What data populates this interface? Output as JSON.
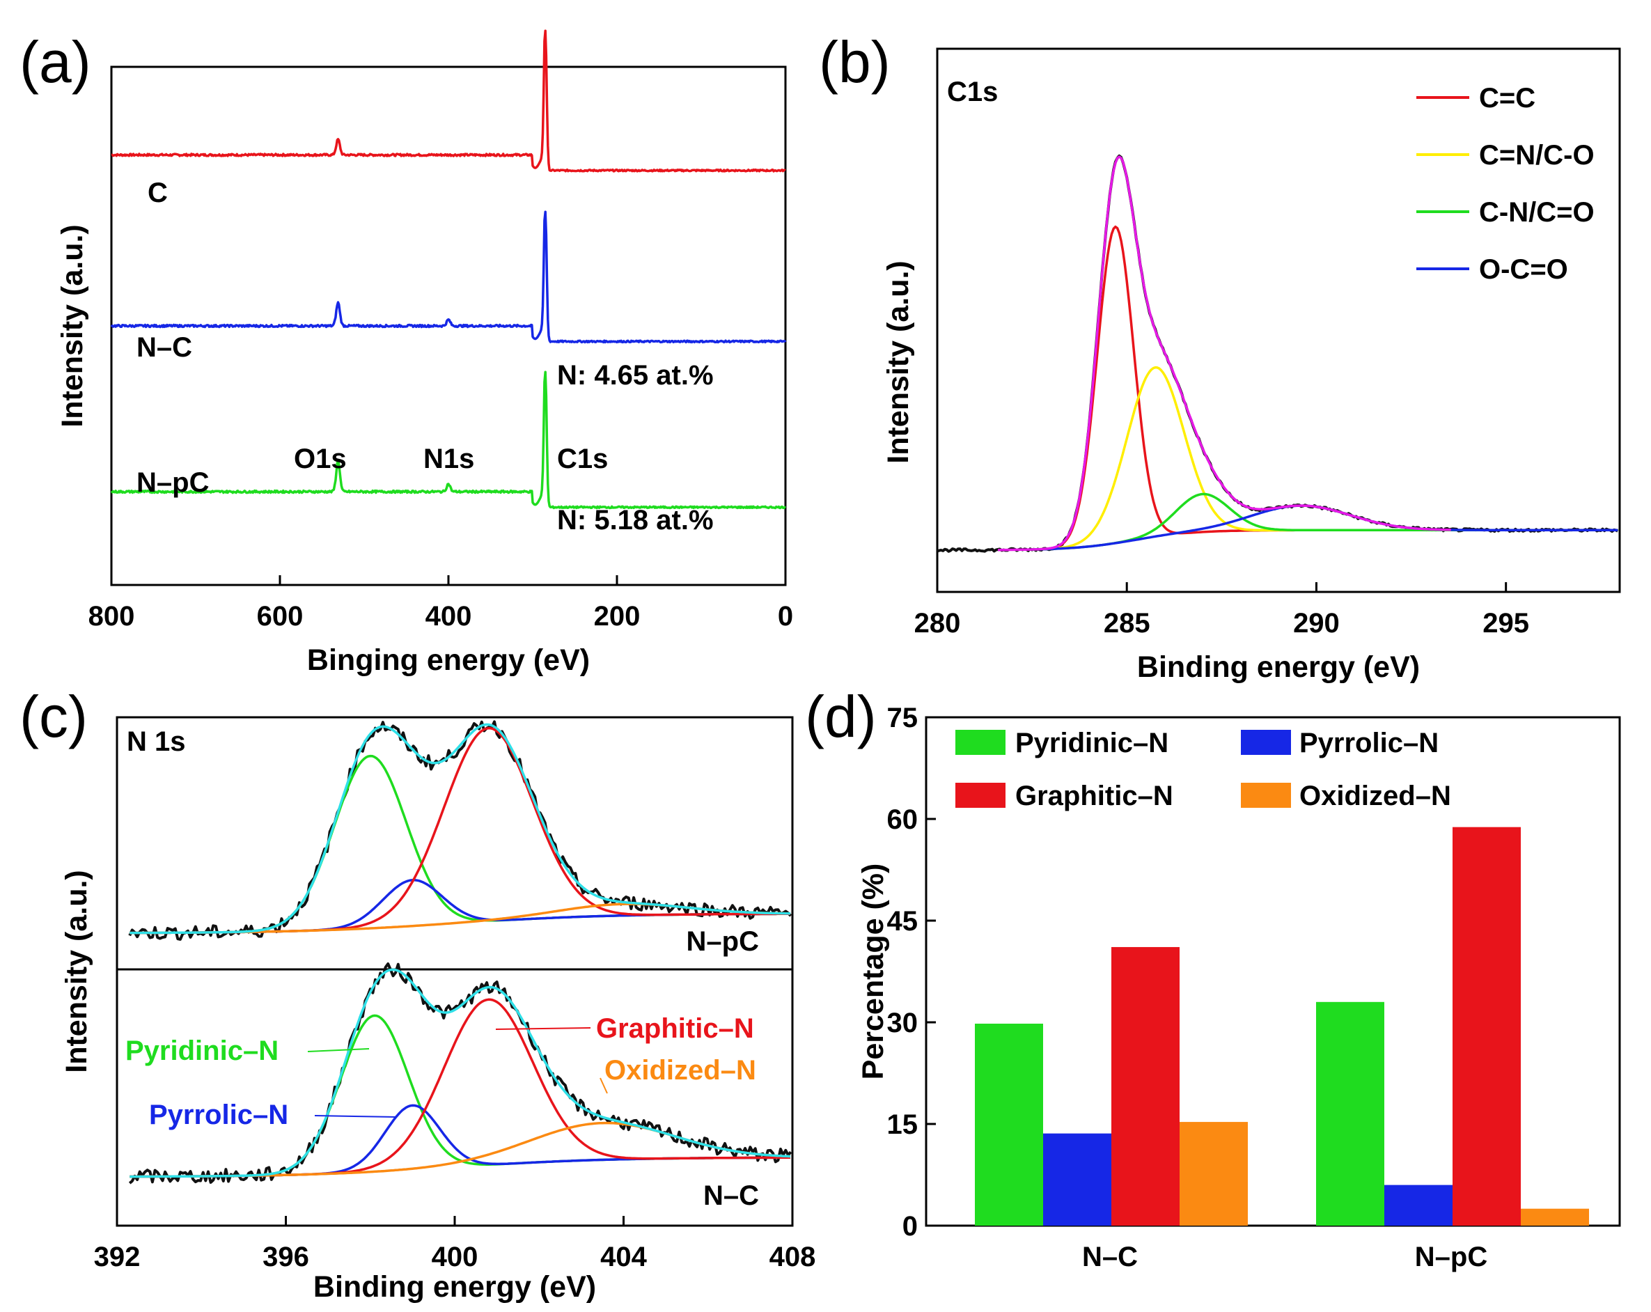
{
  "colors": {
    "red": "#e8141b",
    "blue": "#1627e6",
    "green": "#1fdc1f",
    "yellow": "#ffee00",
    "magenta": "#e619e6",
    "cyan": "#2fe0e8",
    "orange": "#fb8a12",
    "black": "#111111"
  },
  "chart_data": [
    {
      "panel": "(a)",
      "type": "line",
      "xlabel": "Binging energy (eV)",
      "ylabel": "Intensity (a.u.)",
      "xlim": [
        800,
        0
      ],
      "xticks": [
        "800",
        "600",
        "400",
        "200",
        "0"
      ],
      "series": [
        {
          "name": "C",
          "color": "red",
          "baseline": 0.83,
          "after_edge": 0.8,
          "peaks": [
            {
              "x": 531,
              "h": 0.03
            },
            {
              "x": 285,
              "h": 0.27
            }
          ]
        },
        {
          "name": "N–C",
          "color": "blue",
          "baseline": 0.5,
          "after_edge": 0.47,
          "peaks": [
            {
              "x": 531,
              "h": 0.045
            },
            {
              "x": 400,
              "h": 0.012
            },
            {
              "x": 285,
              "h": 0.25
            }
          ],
          "annotation": "N: 4.65 at.%"
        },
        {
          "name": "N–pC",
          "color": "green",
          "baseline": 0.18,
          "after_edge": 0.15,
          "peaks": [
            {
              "x": 531,
              "h": 0.06
            },
            {
              "x": 400,
              "h": 0.015
            },
            {
              "x": 285,
              "h": 0.26
            }
          ],
          "annotation": "N: 5.18 at.%"
        }
      ],
      "peak_labels": [
        {
          "text": "O1s",
          "x": 531
        },
        {
          "text": "N1s",
          "x": 400
        },
        {
          "text": "C1s",
          "x": 285
        }
      ]
    },
    {
      "panel": "(b)",
      "type": "line",
      "title": "C1s",
      "xlabel": "Binding energy (eV)",
      "ylabel": "Intensity (a.u.)",
      "xlim": [
        280,
        298
      ],
      "xticks": [
        "280",
        "285",
        "290",
        "295"
      ],
      "legend": [
        {
          "label": "C=C",
          "color": "red"
        },
        {
          "label": "C=N/C-O",
          "color": "yellow"
        },
        {
          "label": "C-N/C=O",
          "color": "green"
        },
        {
          "label": "O-C=O",
          "color": "blue"
        }
      ],
      "components": [
        {
          "name": "C=C",
          "center": 284.7,
          "height": 0.71,
          "width": 0.48
        },
        {
          "name": "C=N/C-O",
          "center": 285.75,
          "height": 0.38,
          "width": 0.75
        },
        {
          "name": "C-N/C=O",
          "center": 287.0,
          "height": 0.085,
          "width": 0.7
        },
        {
          "name": "O-C=O",
          "center": 289.6,
          "height": 0.055,
          "width": 1.3
        }
      ],
      "envelope_color": "magenta"
    },
    {
      "panel": "(c)",
      "type": "line",
      "title": "N 1s",
      "xlabel": "Binding energy (eV)",
      "ylabel": "Intensity (a.u.)",
      "xlim": [
        392,
        408
      ],
      "xticks": [
        "392",
        "396",
        "400",
        "404",
        "408"
      ],
      "subplots": [
        {
          "sample": "N–pC",
          "components": [
            {
              "name": "Pyridinic–N",
              "color": "green",
              "center": 398.0,
              "height": 0.75,
              "width": 0.85
            },
            {
              "name": "Pyrrolic–N",
              "color": "blue",
              "center": 399.0,
              "height": 0.2,
              "width": 0.7
            },
            {
              "name": "Graphitic–N",
              "color": "red",
              "center": 400.8,
              "height": 0.84,
              "width": 1.05
            },
            {
              "name": "Oxidized–N",
              "color": "orange",
              "center": 404.0,
              "height": 0.05,
              "width": 1.5
            }
          ]
        },
        {
          "sample": "N–C",
          "components": [
            {
              "name": "Pyridinic–N",
              "color": "green",
              "center": 398.1,
              "height": 0.68,
              "width": 0.8
            },
            {
              "name": "Pyrrolic–N",
              "color": "blue",
              "center": 399.0,
              "height": 0.28,
              "width": 0.65
            },
            {
              "name": "Graphitic–N",
              "color": "red",
              "center": 400.8,
              "height": 0.72,
              "width": 1.05
            },
            {
              "name": "Oxidized–N",
              "color": "orange",
              "center": 403.5,
              "height": 0.16,
              "width": 1.7
            }
          ]
        }
      ],
      "labels": [
        {
          "text": "Pyridinic–N",
          "color": "green"
        },
        {
          "text": "Pyrrolic–N",
          "color": "blue"
        },
        {
          "text": "Graphitic–N",
          "color": "red"
        },
        {
          "text": "Oxidized–N",
          "color": "orange"
        }
      ]
    },
    {
      "panel": "(d)",
      "type": "bar",
      "ylabel": "Percentage (%)",
      "ylim": [
        0,
        75
      ],
      "yticks": [
        "0",
        "15",
        "30",
        "45",
        "60",
        "75"
      ],
      "categories": [
        "N–C",
        "N–pC"
      ],
      "series": [
        {
          "name": "Pyridinic–N",
          "color": "green",
          "values": [
            29.8,
            33.0
          ]
        },
        {
          "name": "Pyrrolic–N",
          "color": "blue",
          "values": [
            13.6,
            6.0
          ]
        },
        {
          "name": "Graphitic–N",
          "color": "red",
          "values": [
            41.1,
            58.8
          ]
        },
        {
          "name": "Oxidized–N",
          "color": "orange",
          "values": [
            15.3,
            2.5
          ]
        }
      ]
    }
  ]
}
